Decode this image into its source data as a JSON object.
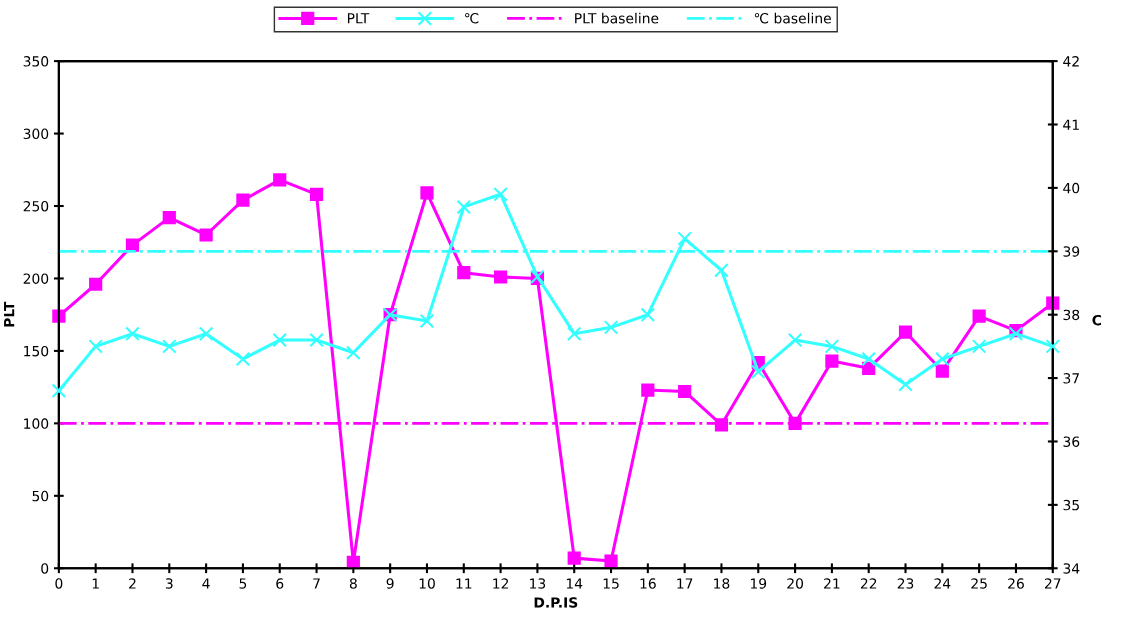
{
  "chart_data": {
    "type": "line",
    "xlabel": "D.P.IS",
    "ylabel": "PLT",
    "y2label": "C",
    "x": [
      0,
      1,
      2,
      3,
      4,
      5,
      6,
      7,
      8,
      9,
      10,
      11,
      12,
      13,
      14,
      15,
      16,
      17,
      18,
      19,
      20,
      21,
      22,
      23,
      24,
      25,
      26,
      27
    ],
    "series": [
      {
        "name": "PLT",
        "color": "#ff00ff",
        "marker": "square",
        "values": [
          174,
          196,
          223,
          242,
          230,
          254,
          268,
          258,
          4,
          175,
          259,
          204,
          201,
          200,
          7,
          5,
          123,
          122,
          99,
          142,
          100,
          143,
          138,
          163,
          136,
          174,
          164,
          183
        ]
      },
      {
        "name": "℃",
        "color": "#33ffff",
        "marker": "cross",
        "axis": "y2",
        "values": [
          36.8,
          37.5,
          37.7,
          37.5,
          37.7,
          37.3,
          37.6,
          37.6,
          37.4,
          38.0,
          37.9,
          39.7,
          39.9,
          38.6,
          37.7,
          37.8,
          38.0,
          39.2,
          38.7,
          37.1,
          37.6,
          37.5,
          37.3,
          36.9,
          37.3,
          37.5,
          37.7,
          37.5
        ]
      }
    ],
    "ref_lines": [
      {
        "axis": "y",
        "value": 100,
        "label": "PLT baseline",
        "color": "#ff00ff",
        "line_style": "dashdot"
      },
      {
        "axis": "y2",
        "value": 39,
        "label": "℃ baseline",
        "color": "#33ffff",
        "line_style": "dashdot"
      }
    ],
    "xlim": [
      0,
      27
    ],
    "xticks": [
      0,
      1,
      2,
      3,
      4,
      5,
      6,
      7,
      8,
      9,
      10,
      11,
      12,
      13,
      14,
      15,
      16,
      17,
      18,
      19,
      20,
      21,
      22,
      23,
      24,
      25,
      26,
      27
    ],
    "ylim": [
      0,
      350
    ],
    "yticks": [
      0,
      50,
      100,
      150,
      200,
      250,
      300,
      350
    ],
    "y2lim": [
      34,
      42
    ],
    "y2ticks": [
      34,
      35,
      36,
      37,
      38,
      39,
      40,
      41,
      42
    ],
    "grid": false,
    "legend": "top",
    "line_style": "solid"
  }
}
